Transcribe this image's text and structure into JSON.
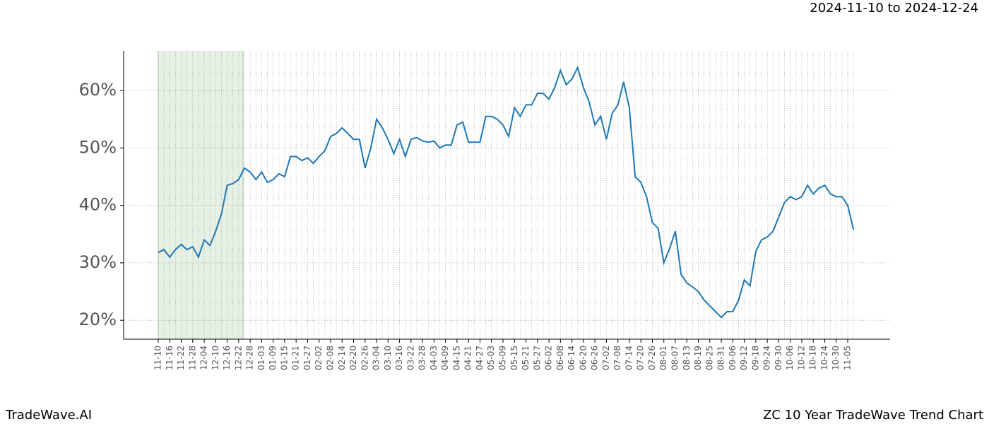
{
  "chart_data": {
    "type": "line",
    "subtitle": "2024-11-10 to 2024-12-24",
    "footer_left": "TradeWave.AI",
    "footer_right": "ZC 10 Year TradeWave Trend Chart",
    "categories": [
      "11-10",
      null,
      "11-16",
      null,
      "11-22",
      null,
      "11-28",
      null,
      "12-04",
      null,
      "12-10",
      null,
      "12-16",
      null,
      "12-22",
      null,
      "12-28",
      null,
      "01-03",
      null,
      "01-09",
      null,
      "01-15",
      null,
      "01-21",
      null,
      "01-27",
      null,
      "02-02",
      null,
      "02-08",
      null,
      "02-14",
      null,
      "02-20",
      null,
      "02-26",
      null,
      "03-04",
      null,
      "03-10",
      null,
      "03-16",
      null,
      "03-22",
      null,
      "03-28",
      null,
      "04-03",
      null,
      "04-09",
      null,
      "04-15",
      null,
      "04-21",
      null,
      "04-27",
      null,
      "05-03",
      null,
      "05-09",
      null,
      "05-15",
      null,
      "05-21",
      null,
      "05-27",
      null,
      "06-02",
      null,
      "06-08",
      null,
      "06-14",
      null,
      "06-20",
      null,
      "06-26",
      null,
      "07-02",
      null,
      "07-08",
      null,
      "07-14",
      null,
      "07-20",
      null,
      "07-26",
      null,
      "08-01",
      null,
      "08-07",
      null,
      "08-13",
      null,
      "08-19",
      null,
      "08-25",
      null,
      "08-31",
      null,
      "09-06",
      null,
      "09-12",
      null,
      "09-18",
      null,
      "09-24",
      null,
      "09-30",
      null,
      "10-06",
      null,
      "10-12",
      null,
      "10-18",
      null,
      "10-24",
      null,
      "10-30",
      null,
      "11-05",
      null
    ],
    "series": [
      {
        "color": "#1f77b4",
        "values": [
          31.8,
          32.3,
          31.0,
          32.3,
          33.2,
          32.3,
          32.8,
          31.0,
          34.0,
          33.0,
          35.5,
          38.5,
          43.5,
          43.8,
          44.5,
          46.5,
          45.8,
          44.5,
          45.8,
          44.0,
          44.5,
          45.5,
          45.0,
          48.5,
          48.5,
          47.8,
          48.3,
          47.3,
          48.5,
          49.5,
          52.0,
          52.5,
          53.5,
          52.5,
          51.5,
          51.5,
          46.5,
          50.0,
          55.0,
          53.5,
          51.5,
          49.0,
          51.5,
          48.5,
          51.5,
          51.8,
          51.2,
          51.0,
          51.2,
          50.0,
          50.5,
          50.5,
          54.0,
          54.5,
          51.0,
          51.0,
          51.0,
          55.5,
          55.5,
          55.0,
          54.0,
          52.0,
          57.0,
          55.5,
          57.5,
          57.5,
          59.5,
          59.5,
          58.5,
          60.5,
          63.5,
          61.0,
          62.0,
          64.0,
          60.5,
          58.0,
          54.0,
          55.5,
          51.5,
          56.0,
          57.5,
          61.5,
          57.0,
          45.0,
          44.0,
          41.5,
          37.0,
          36.0,
          30.0,
          32.5,
          35.5,
          28.0,
          26.5,
          25.8,
          25.0,
          23.5,
          22.5,
          21.5,
          20.5,
          21.5,
          21.5,
          23.5,
          27.0,
          26.0,
          32.0,
          34.0,
          34.5,
          35.5,
          38.0,
          40.5,
          41.5,
          41.0,
          41.5,
          43.5,
          42.0,
          43.0,
          43.5,
          42.0,
          41.5,
          41.5,
          40.0,
          35.8
        ]
      }
    ],
    "ylim": [
      16.7,
      66.9
    ],
    "yticks": [
      {
        "value": 20,
        "label": "20%"
      },
      {
        "value": 30,
        "label": "30%"
      },
      {
        "value": 40,
        "label": "40%"
      },
      {
        "value": 50,
        "label": "50%"
      },
      {
        "value": 60,
        "label": "60%"
      }
    ],
    "grid": true
  }
}
